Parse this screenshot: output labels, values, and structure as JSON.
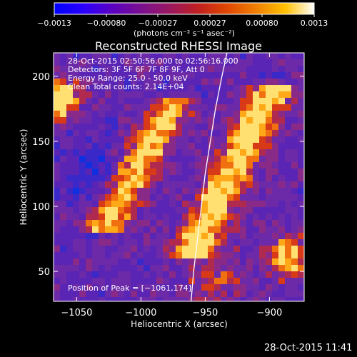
{
  "colorbar": {
    "ticks": [
      "-0.0013",
      "-0.00080",
      "-0.00027",
      "0.00027",
      "0.00080",
      "0.0013"
    ],
    "units": "(photons cm⁻² s⁻¹ asec⁻²)",
    "colors": [
      "#0000ff",
      "#2a00ff",
      "#5a00c0",
      "#7a1090",
      "#9a1860",
      "#c02020",
      "#e04800",
      "#f08000",
      "#ffc000",
      "#ffffff"
    ]
  },
  "chart_data": {
    "type": "heatmap",
    "title": "Reconstructed RHESSI Image",
    "xlabel": "Heliocentric X (arcsec)",
    "ylabel": "Heliocentric Y (arcsec)",
    "xlim": [
      -1068,
      -873
    ],
    "ylim": [
      27,
      218
    ],
    "x_ticks": [
      -1050,
      -1000,
      -950,
      -900
    ],
    "y_ticks": [
      50,
      100,
      150,
      200
    ],
    "x_tick_labels": [
      "−1050",
      "−1000",
      "−950",
      "−900"
    ],
    "y_tick_labels": [
      "50",
      "100",
      "150",
      "200"
    ],
    "annotations": [
      "28-Oct-2015 02:50:56.000 to 02:56:16.000",
      "Detectors: 3F 5F 6F 7F 8F 9F, Att 0",
      "Energy Range: 25.0 - 50.0 keV",
      "Clean    Total counts: 2.14E+04"
    ],
    "peak_label": "Position of Peak = [−1061,174]",
    "peak": [
      -1061,
      174
    ],
    "limb_line": [
      [
        -961,
        27
      ],
      [
        -959,
        50
      ],
      [
        -956,
        75
      ],
      [
        -953,
        100
      ],
      [
        -950,
        125
      ],
      [
        -946,
        150
      ],
      [
        -942,
        175
      ],
      [
        -937,
        200
      ],
      [
        -933,
        218
      ]
    ]
  },
  "footer": {
    "timestamp": "28-Oct-2015 11:41"
  }
}
